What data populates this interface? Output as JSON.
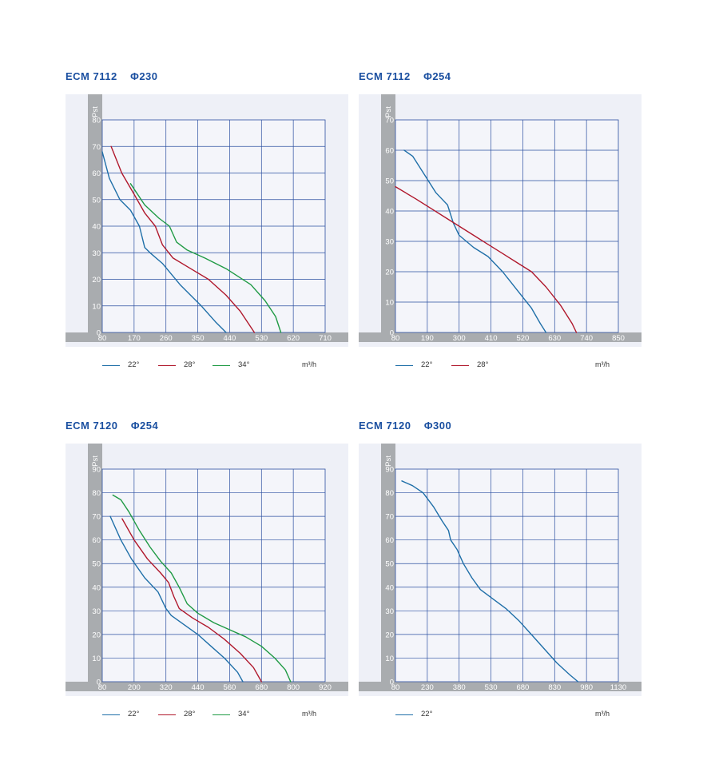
{
  "chart_data": [
    {
      "type": "line",
      "title_model": "ECM 7112",
      "title_size": "Φ230",
      "ylabel": "Pst",
      "unit": "m³/h",
      "x_ticks": [
        "80",
        "170",
        "260",
        "350",
        "440",
        "530",
        "620",
        "710"
      ],
      "y_ticks": [
        "0",
        "10",
        "20",
        "30",
        "40",
        "50",
        "60",
        "70",
        "80"
      ],
      "xlim": [
        80,
        710
      ],
      "ylim": [
        0,
        80
      ],
      "colors": {
        "22°": "#1f6fa8",
        "28°": "#b0182c",
        "34°": "#1f9a44"
      },
      "series": [
        {
          "name": "22°",
          "points": [
            [
              80,
              68
            ],
            [
              100,
              58
            ],
            [
              130,
              50
            ],
            [
              160,
              46
            ],
            [
              185,
              40
            ],
            [
              200,
              32
            ],
            [
              215,
              30
            ],
            [
              250,
              26
            ],
            [
              300,
              18
            ],
            [
              360,
              10
            ],
            [
              400,
              4
            ],
            [
              430,
              0
            ]
          ]
        },
        {
          "name": "28°",
          "points": [
            [
              105,
              70
            ],
            [
              135,
              60
            ],
            [
              170,
              52
            ],
            [
              200,
              45
            ],
            [
              230,
              40
            ],
            [
              250,
              33
            ],
            [
              280,
              28
            ],
            [
              330,
              24
            ],
            [
              380,
              20
            ],
            [
              430,
              14
            ],
            [
              470,
              8
            ],
            [
              510,
              0
            ]
          ]
        },
        {
          "name": "34°",
          "points": [
            [
              160,
              56
            ],
            [
              200,
              48
            ],
            [
              240,
              43
            ],
            [
              270,
              40
            ],
            [
              290,
              34
            ],
            [
              320,
              31
            ],
            [
              370,
              28
            ],
            [
              430,
              24
            ],
            [
              500,
              18
            ],
            [
              540,
              12
            ],
            [
              570,
              6
            ],
            [
              585,
              0
            ]
          ]
        }
      ]
    },
    {
      "type": "line",
      "title_model": "ECM 7112",
      "title_size": "Φ254",
      "ylabel": "Pst",
      "unit": "m³/h",
      "x_ticks": [
        "80",
        "190",
        "300",
        "410",
        "520",
        "630",
        "740",
        "850"
      ],
      "y_ticks": [
        "0",
        "10",
        "20",
        "30",
        "40",
        "50",
        "60",
        "70"
      ],
      "xlim": [
        80,
        850
      ],
      "ylim": [
        0,
        70
      ],
      "colors": {
        "22°": "#1f6fa8",
        "28°": "#b0182c"
      },
      "series": [
        {
          "name": "22°",
          "points": [
            [
              110,
              60
            ],
            [
              140,
              58
            ],
            [
              180,
              52
            ],
            [
              220,
              46
            ],
            [
              260,
              42
            ],
            [
              280,
              36
            ],
            [
              300,
              32
            ],
            [
              350,
              28
            ],
            [
              400,
              25
            ],
            [
              450,
              20
            ],
            [
              500,
              14
            ],
            [
              550,
              8
            ],
            [
              580,
              3
            ],
            [
              600,
              0
            ]
          ]
        },
        {
          "name": "28°",
          "points": [
            [
              80,
              48
            ],
            [
              150,
              44
            ],
            [
              200,
              41
            ],
            [
              250,
              38
            ],
            [
              300,
              35
            ],
            [
              350,
              32
            ],
            [
              400,
              29
            ],
            [
              450,
              26
            ],
            [
              500,
              23
            ],
            [
              550,
              20
            ],
            [
              600,
              15
            ],
            [
              650,
              9
            ],
            [
              690,
              3
            ],
            [
              705,
              0
            ]
          ]
        }
      ]
    },
    {
      "type": "line",
      "title_model": "ECM 7120",
      "title_size": "Φ254",
      "ylabel": "Pst",
      "unit": "m³/h",
      "x_ticks": [
        "80",
        "200",
        "320",
        "440",
        "560",
        "680",
        "800",
        "920"
      ],
      "y_ticks": [
        "0",
        "10",
        "20",
        "30",
        "40",
        "50",
        "60",
        "70",
        "80",
        "90"
      ],
      "xlim": [
        80,
        920
      ],
      "ylim": [
        0,
        90
      ],
      "colors": {
        "22°": "#1f6fa8",
        "28°": "#b0182c",
        "34°": "#1f9a44"
      },
      "series": [
        {
          "name": "22°",
          "points": [
            [
              110,
              70
            ],
            [
              150,
              60
            ],
            [
              190,
              52
            ],
            [
              240,
              44
            ],
            [
              290,
              38
            ],
            [
              320,
              31
            ],
            [
              340,
              28
            ],
            [
              390,
              24
            ],
            [
              440,
              20
            ],
            [
              490,
              15
            ],
            [
              540,
              10
            ],
            [
              590,
              4
            ],
            [
              610,
              0
            ]
          ]
        },
        {
          "name": "28°",
          "points": [
            [
              155,
              69
            ],
            [
              200,
              60
            ],
            [
              250,
              52
            ],
            [
              300,
              46
            ],
            [
              330,
              42
            ],
            [
              350,
              36
            ],
            [
              370,
              31
            ],
            [
              420,
              27
            ],
            [
              480,
              23
            ],
            [
              540,
              18
            ],
            [
              600,
              12
            ],
            [
              650,
              6
            ],
            [
              680,
              0
            ]
          ]
        },
        {
          "name": "34°",
          "points": [
            [
              120,
              79
            ],
            [
              150,
              77
            ],
            [
              180,
              72
            ],
            [
              220,
              64
            ],
            [
              260,
              57
            ],
            [
              300,
              51
            ],
            [
              340,
              46
            ],
            [
              370,
              40
            ],
            [
              400,
              33
            ],
            [
              440,
              29
            ],
            [
              500,
              25
            ],
            [
              560,
              22
            ],
            [
              620,
              19
            ],
            [
              680,
              15
            ],
            [
              730,
              10
            ],
            [
              770,
              5
            ],
            [
              790,
              0
            ]
          ]
        }
      ]
    },
    {
      "type": "line",
      "title_model": "ECM 7120",
      "title_size": "Φ300",
      "ylabel": "Pst",
      "unit": "m³/h",
      "x_ticks": [
        "80",
        "230",
        "380",
        "530",
        "680",
        "830",
        "980",
        "1130"
      ],
      "y_ticks": [
        "0",
        "10",
        "20",
        "30",
        "40",
        "50",
        "60",
        "70",
        "80",
        "90"
      ],
      "xlim": [
        80,
        1130
      ],
      "ylim": [
        0,
        90
      ],
      "colors": {
        "22°": "#1f6fa8"
      },
      "series": [
        {
          "name": "22°",
          "points": [
            [
              110,
              85
            ],
            [
              160,
              83
            ],
            [
              210,
              80
            ],
            [
              260,
              74
            ],
            [
              300,
              68
            ],
            [
              330,
              64
            ],
            [
              340,
              60
            ],
            [
              370,
              56
            ],
            [
              400,
              50
            ],
            [
              440,
              44
            ],
            [
              480,
              39
            ],
            [
              540,
              35
            ],
            [
              600,
              31
            ],
            [
              660,
              26
            ],
            [
              720,
              20
            ],
            [
              780,
              14
            ],
            [
              840,
              8
            ],
            [
              900,
              3
            ],
            [
              940,
              0
            ]
          ]
        }
      ]
    }
  ]
}
